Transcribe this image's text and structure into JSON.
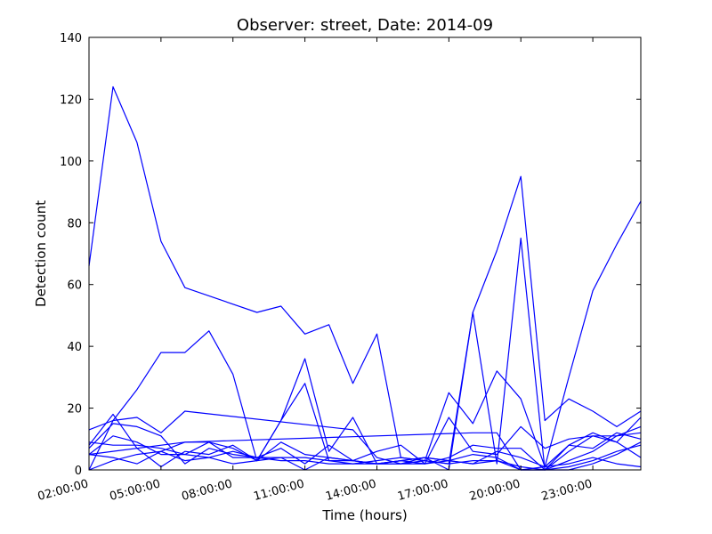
{
  "chart_data": {
    "type": "line",
    "title": "Observer: street, Date: 2014-09",
    "xlabel": "Time (hours)",
    "ylabel": "Detection count",
    "xlim": [
      2,
      25
    ],
    "ylim": [
      0,
      140
    ],
    "x_ticks": [
      {
        "value": 2,
        "label": "02:00:00"
      },
      {
        "value": 5,
        "label": "05:00:00"
      },
      {
        "value": 8,
        "label": "08:00:00"
      },
      {
        "value": 11,
        "label": "11:00:00"
      },
      {
        "value": 14,
        "label": "14:00:00"
      },
      {
        "value": 17,
        "label": "17:00:00"
      },
      {
        "value": 20,
        "label": "20:00:00"
      },
      {
        "value": 23,
        "label": "23:00:00"
      }
    ],
    "y_ticks": [
      0,
      20,
      40,
      60,
      80,
      100,
      120,
      140
    ],
    "grid": false,
    "line_color": "#0000ff",
    "series": [
      {
        "x": [
          2,
          3,
          4,
          5,
          6,
          9,
          10,
          11,
          12,
          13,
          14,
          15,
          16,
          17,
          18,
          19,
          20,
          21,
          22,
          23,
          24,
          25
        ],
        "y": [
          66,
          124,
          106,
          74,
          59,
          51,
          53,
          44,
          47,
          28,
          44,
          4,
          3,
          2,
          51,
          71,
          95,
          16,
          23,
          19,
          14,
          19
        ]
      },
      {
        "x": [
          2,
          3,
          4,
          5,
          6,
          7,
          8,
          9,
          10,
          11,
          12,
          13,
          14,
          15,
          16,
          17,
          18,
          19,
          20,
          21,
          22,
          23,
          24,
          25
        ],
        "y": [
          0,
          16,
          26,
          38,
          38,
          45,
          31,
          3,
          16,
          36,
          6,
          17,
          2,
          2,
          3,
          25,
          15,
          32,
          23,
          1,
          30,
          58,
          73,
          87
        ]
      },
      {
        "x": [
          2,
          3,
          4,
          5,
          6,
          13,
          14,
          15,
          16,
          17,
          18,
          19,
          20,
          21,
          22,
          23,
          24,
          25
        ],
        "y": [
          13,
          16,
          17,
          12,
          19,
          13,
          4,
          2,
          2,
          4,
          8,
          7,
          7,
          0,
          8,
          12,
          9,
          17
        ]
      },
      {
        "x": [
          2,
          3,
          4,
          5,
          6,
          7,
          8,
          9,
          10,
          11,
          12,
          13,
          14,
          15,
          16,
          17,
          18,
          19,
          20,
          21,
          22,
          23,
          24,
          25
        ],
        "y": [
          8,
          18,
          7,
          1,
          6,
          5,
          8,
          3,
          16,
          28,
          3,
          3,
          2,
          2,
          4,
          0,
          51,
          2,
          75,
          0,
          3,
          6,
          11,
          14
        ]
      },
      {
        "x": [
          2,
          3,
          4,
          5,
          6,
          7,
          8,
          9,
          10,
          11,
          12,
          13,
          14,
          15,
          16,
          17,
          18,
          19,
          20,
          21,
          22,
          23,
          24,
          25
        ],
        "y": [
          5,
          11,
          9,
          5,
          5,
          9,
          7,
          3,
          9,
          5,
          4,
          3,
          6,
          8,
          2,
          17,
          6,
          5,
          14,
          7,
          10,
          11,
          11,
          12
        ]
      },
      {
        "x": [
          2,
          3,
          4,
          5,
          6,
          7,
          8,
          9,
          10,
          11,
          12,
          13,
          14,
          15,
          16,
          17,
          18,
          19,
          20,
          21,
          22,
          23,
          24,
          25
        ],
        "y": [
          7,
          15,
          14,
          11,
          2,
          7,
          5,
          4,
          7,
          2,
          8,
          3,
          2,
          3,
          2,
          3,
          2,
          6,
          4,
          1,
          8,
          7,
          12,
          10
        ]
      },
      {
        "x": [
          2,
          3,
          4,
          5,
          6,
          7,
          8,
          9,
          10,
          11,
          12,
          13,
          14,
          15,
          16,
          17,
          18,
          19,
          20,
          21,
          22,
          23,
          24,
          25
        ],
        "y": [
          5,
          4,
          2,
          6,
          3,
          4,
          2,
          3,
          4,
          4,
          3,
          2,
          3,
          4,
          3,
          2,
          3,
          3,
          1,
          0,
          6,
          11,
          9,
          4
        ]
      },
      {
        "x": [
          2,
          3,
          4,
          5,
          6,
          7,
          8,
          9,
          10,
          11,
          12,
          13,
          14,
          15,
          16,
          17,
          18,
          19,
          20,
          21,
          22,
          23,
          24,
          25
        ],
        "y": [
          0,
          3,
          5,
          6,
          9,
          9,
          4,
          4,
          3,
          3,
          2,
          2,
          2,
          3,
          4,
          3,
          2,
          3,
          0,
          0,
          1,
          3,
          6,
          8
        ]
      },
      {
        "x": [
          2,
          3,
          4,
          5,
          6,
          7,
          8,
          9,
          10,
          11,
          12,
          13,
          14,
          15,
          16,
          17,
          18,
          19,
          20,
          21,
          22,
          23,
          24,
          25
        ],
        "y": [
          9,
          8,
          8,
          7,
          5,
          4,
          6,
          4,
          4,
          0,
          4,
          3,
          2,
          3,
          4,
          3,
          5,
          4,
          0,
          1,
          2,
          4,
          2,
          1
        ]
      },
      {
        "x": [
          2,
          6,
          18,
          19,
          20,
          21,
          22,
          23,
          24,
          25
        ],
        "y": [
          5,
          9,
          12,
          12,
          0,
          0,
          0,
          2,
          5,
          9
        ]
      }
    ]
  }
}
